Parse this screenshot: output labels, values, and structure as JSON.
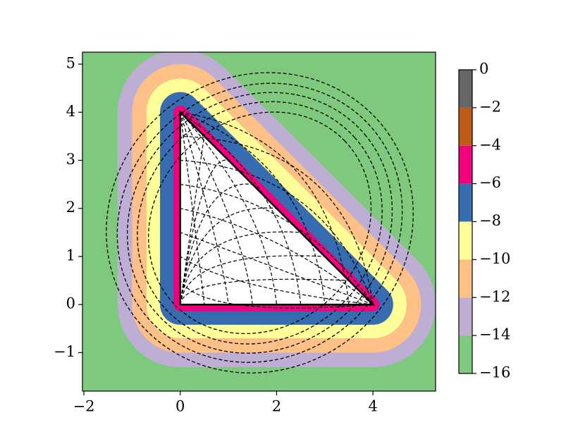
{
  "chart_data": {
    "type": "contour",
    "xlim": [
      -2.03,
      5.3
    ],
    "ylim": [
      -1.8,
      5.25
    ],
    "xticks": [
      {
        "value": -2,
        "label": "−2"
      },
      0,
      2,
      4
    ],
    "yticks": [
      {
        "value": -1,
        "label": "−1"
      },
      0,
      1,
      2,
      3,
      4,
      5
    ],
    "triangle": {
      "x": [
        0,
        4,
        0
      ],
      "y": [
        0,
        0,
        4
      ]
    },
    "colorbar": {
      "levels": [
        {
          "value": -16,
          "label": "−16"
        },
        {
          "value": -14,
          "label": "−14"
        },
        {
          "value": -12,
          "label": "−12"
        },
        {
          "value": -10,
          "label": "−10"
        },
        {
          "value": -8,
          "label": "−8"
        },
        {
          "value": -6,
          "label": "−6"
        },
        {
          "value": -4,
          "label": "−4"
        },
        {
          "value": -2,
          "label": "−2"
        },
        0
      ],
      "colors": [
        "#7fc97f",
        "#beaed4",
        "#fdc086",
        "#ffff99",
        "#386cb0",
        "#f0027f",
        "#bf5b17",
        "#666666"
      ]
    }
  }
}
